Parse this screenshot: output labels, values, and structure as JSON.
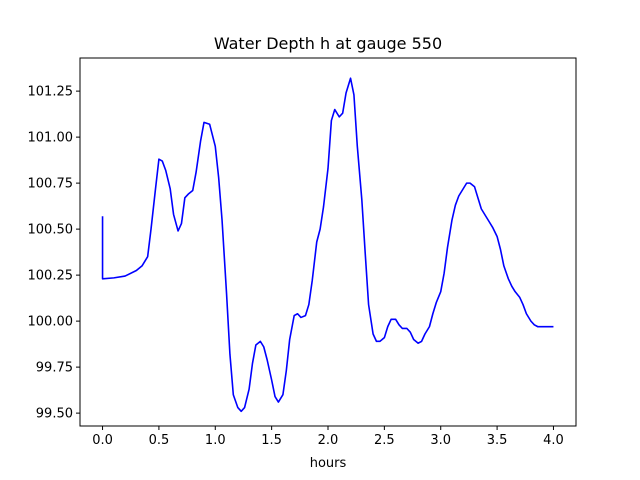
{
  "chart_data": {
    "type": "line",
    "title": "Water Depth h at gauge 550",
    "xlabel": "hours",
    "ylabel": "",
    "xlim": [
      -0.2,
      4.2
    ],
    "ylim": [
      99.43,
      101.43
    ],
    "xticks": [
      0.0,
      0.5,
      1.0,
      1.5,
      2.0,
      2.5,
      3.0,
      3.5,
      4.0
    ],
    "xtick_labels": [
      "0.0",
      "0.5",
      "1.0",
      "1.5",
      "2.0",
      "2.5",
      "3.0",
      "3.5",
      "4.0"
    ],
    "yticks": [
      99.5,
      99.75,
      100.0,
      100.25,
      100.5,
      100.75,
      101.0,
      101.25
    ],
    "ytick_labels": [
      "99.50",
      "99.75",
      "100.00",
      "100.25",
      "100.50",
      "100.75",
      "101.00",
      "101.25"
    ],
    "grid": false,
    "legend": "none",
    "series": [
      {
        "color": "#0000ff",
        "x": [
          0.0,
          0.0,
          0.0,
          0.1,
          0.2,
          0.3,
          0.35,
          0.4,
          0.43,
          0.47,
          0.5,
          0.53,
          0.56,
          0.6,
          0.63,
          0.67,
          0.7,
          0.73,
          0.76,
          0.8,
          0.83,
          0.87,
          0.9,
          0.95,
          1.0,
          1.03,
          1.06,
          1.1,
          1.13,
          1.16,
          1.2,
          1.23,
          1.26,
          1.3,
          1.33,
          1.36,
          1.4,
          1.43,
          1.46,
          1.5,
          1.53,
          1.56,
          1.6,
          1.63,
          1.66,
          1.7,
          1.73,
          1.76,
          1.8,
          1.83,
          1.86,
          1.9,
          1.93,
          1.96,
          2.0,
          2.03,
          2.06,
          2.1,
          2.13,
          2.16,
          2.2,
          2.23,
          2.26,
          2.3,
          2.33,
          2.36,
          2.4,
          2.43,
          2.46,
          2.5,
          2.53,
          2.56,
          2.6,
          2.63,
          2.66,
          2.7,
          2.73,
          2.76,
          2.8,
          2.83,
          2.86,
          2.9,
          2.93,
          2.96,
          3.0,
          3.03,
          3.06,
          3.1,
          3.13,
          3.16,
          3.2,
          3.23,
          3.26,
          3.3,
          3.33,
          3.36,
          3.4,
          3.43,
          3.46,
          3.5,
          3.53,
          3.56,
          3.6,
          3.63,
          3.66,
          3.7,
          3.73,
          3.76,
          3.8,
          3.83,
          3.86,
          3.9,
          3.93,
          3.96,
          4.0
        ],
        "y": [
          100.57,
          100.23,
          100.23,
          100.235,
          100.245,
          100.275,
          100.3,
          100.35,
          100.5,
          100.72,
          100.88,
          100.87,
          100.82,
          100.72,
          100.58,
          100.49,
          100.53,
          100.67,
          100.69,
          100.71,
          100.81,
          100.98,
          101.08,
          101.07,
          100.95,
          100.78,
          100.55,
          100.15,
          99.82,
          99.6,
          99.53,
          99.51,
          99.53,
          99.63,
          99.77,
          99.87,
          99.89,
          99.86,
          99.79,
          99.68,
          99.59,
          99.56,
          99.6,
          99.73,
          99.9,
          100.03,
          100.04,
          100.02,
          100.03,
          100.09,
          100.22,
          100.43,
          100.5,
          100.62,
          100.83,
          101.09,
          101.15,
          101.11,
          101.13,
          101.24,
          101.32,
          101.23,
          100.95,
          100.66,
          100.37,
          100.09,
          99.93,
          99.89,
          99.89,
          99.91,
          99.97,
          100.01,
          100.01,
          99.98,
          99.96,
          99.96,
          99.94,
          99.9,
          99.88,
          99.89,
          99.93,
          99.97,
          100.04,
          100.1,
          100.16,
          100.26,
          100.4,
          100.55,
          100.63,
          100.68,
          100.72,
          100.75,
          100.75,
          100.73,
          100.67,
          100.61,
          100.57,
          100.54,
          100.51,
          100.46,
          100.39,
          100.3,
          100.23,
          100.19,
          100.16,
          100.13,
          100.09,
          100.04,
          100.0,
          99.98,
          99.97,
          99.97,
          99.97,
          99.97,
          99.97
        ]
      }
    ]
  }
}
